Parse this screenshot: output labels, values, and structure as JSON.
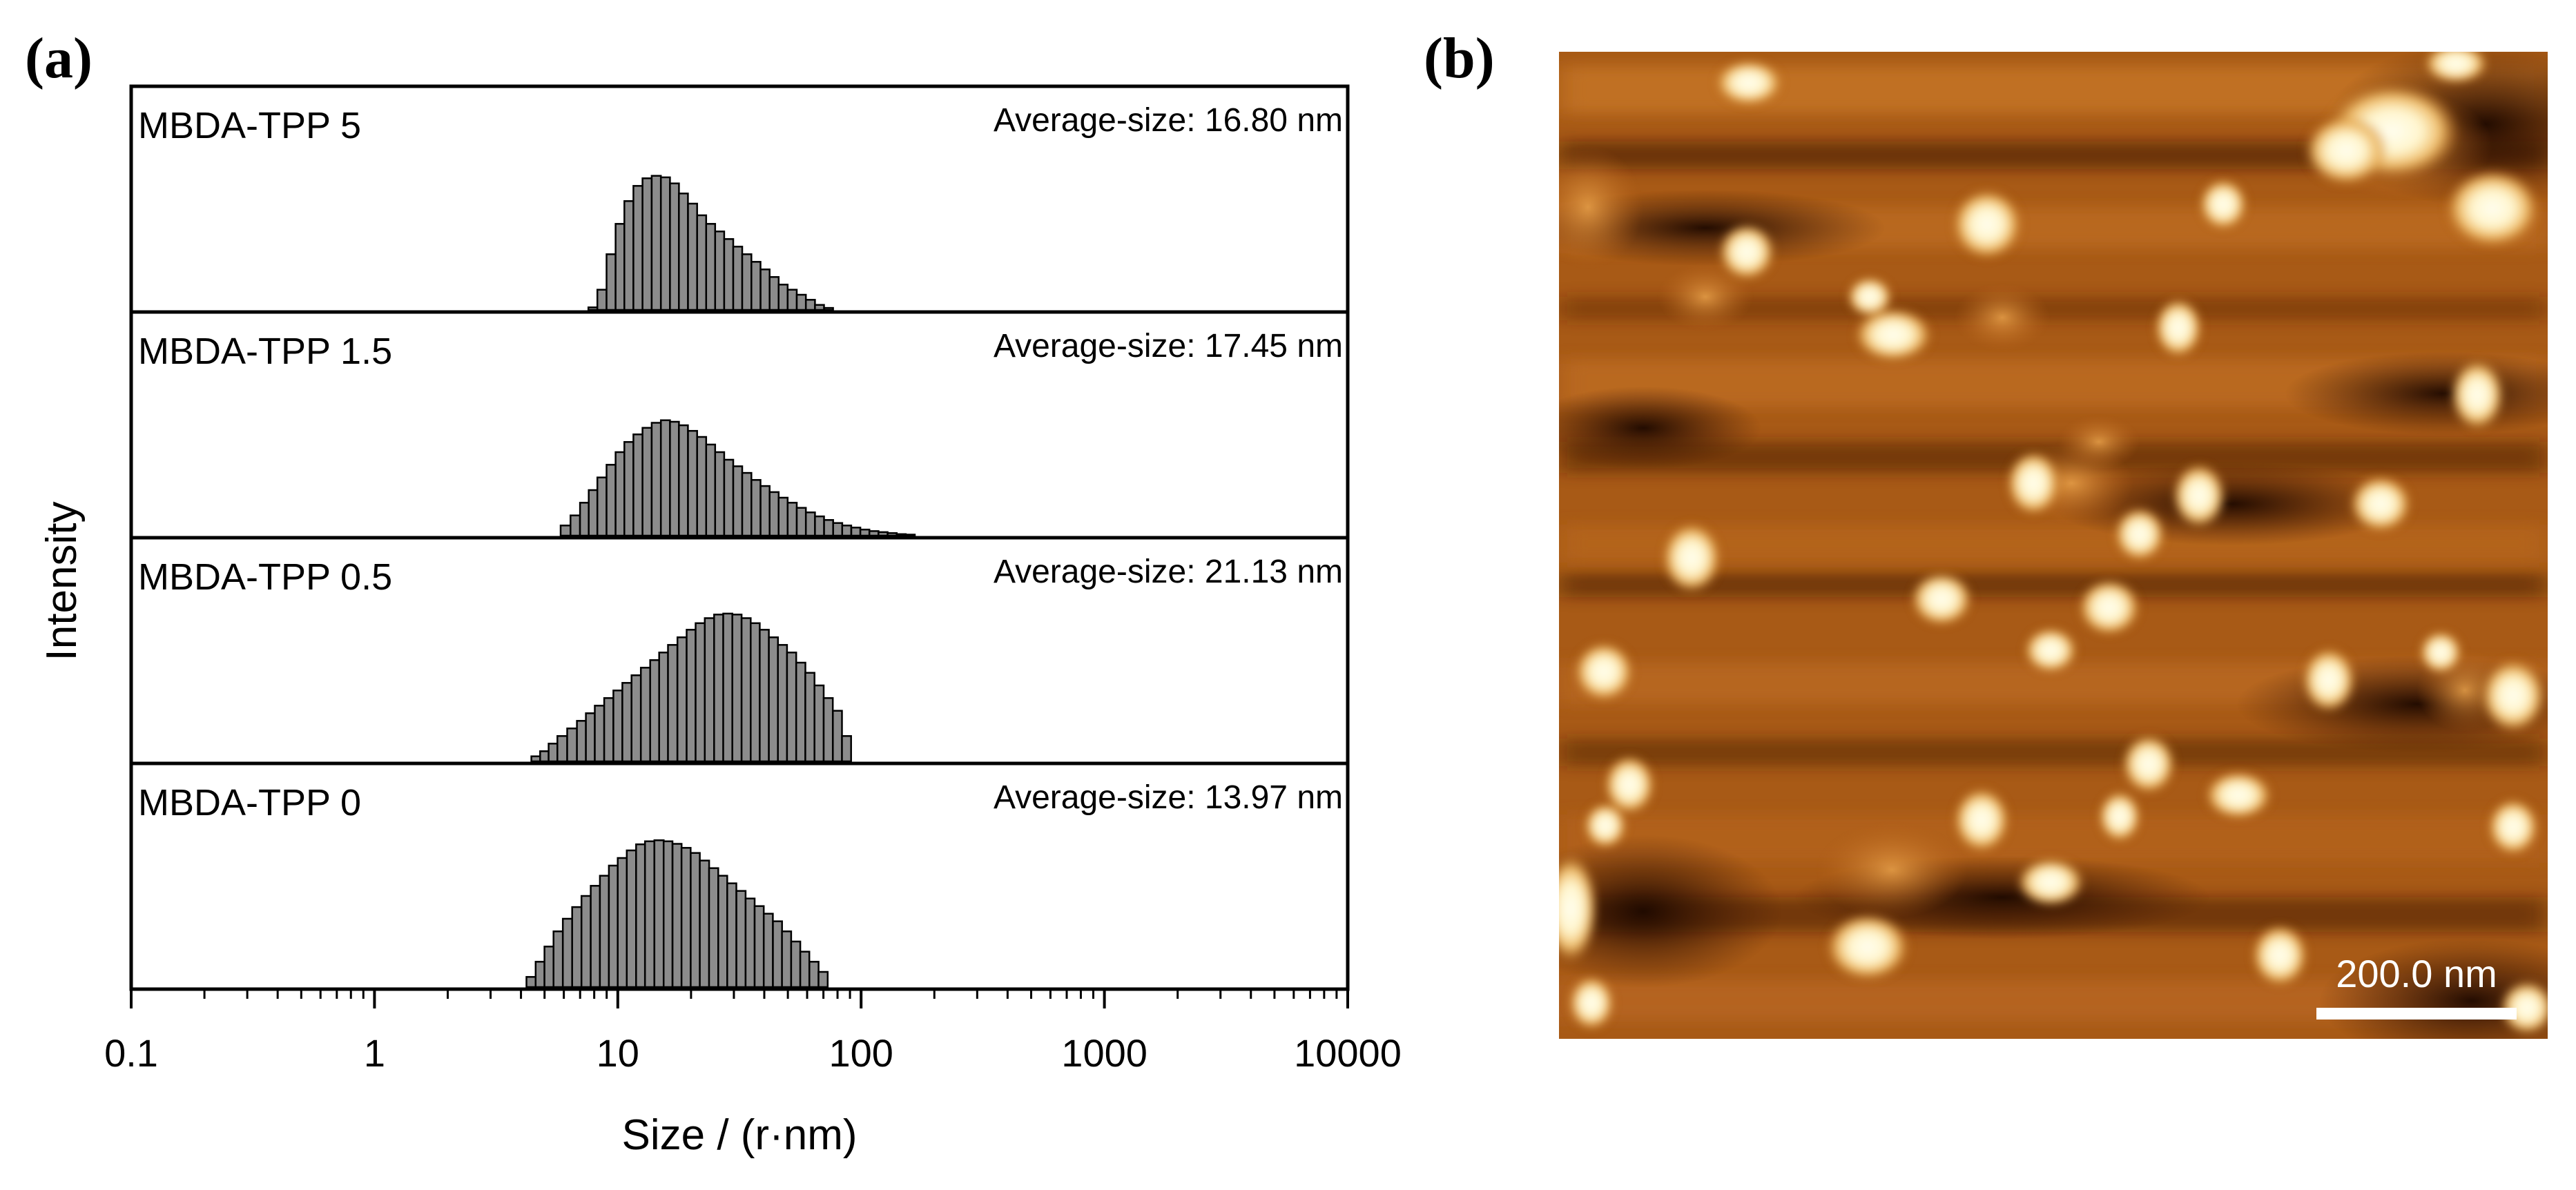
{
  "panel_a": {
    "letter": "(a)"
  },
  "panel_b": {
    "letter": "(b)",
    "scale_bar_label": "200.0 nm"
  },
  "chart_data": {
    "type": "bar",
    "title": "",
    "xlabel": "Size / (r·nm)",
    "ylabel": "Intensity",
    "xscale": "log",
    "xlim": [
      0.1,
      10000
    ],
    "x_ticks": [
      0.1,
      1,
      10,
      100,
      1000,
      10000
    ],
    "x_tick_labels": [
      "0.1",
      "1",
      "10",
      "100",
      "1000",
      "10000"
    ],
    "series": [
      {
        "name": "MBDA-TPP 5",
        "average_label": "Average-size: 16.80 nm",
        "x": [
          7.9,
          8.6,
          9.4,
          10.2,
          11.1,
          12.1,
          13.2,
          14.4,
          15.7,
          17.1,
          18.6,
          20.3,
          22.1,
          24.1,
          26.2,
          28.6,
          31.1,
          33.9,
          37.0,
          40.3,
          43.9,
          47.8,
          52.1,
          56.8,
          61.9,
          67.5,
          73.5
        ],
        "values": [
          0.5,
          4,
          11,
          17,
          21.5,
          24.5,
          26,
          26.5,
          26.2,
          25,
          23,
          21,
          18.7,
          17,
          15.5,
          14,
          12.5,
          11,
          9.5,
          8,
          6.5,
          5,
          4,
          3,
          2,
          1,
          0.4
        ]
      },
      {
        "name": "MBDA-TPP 1.5",
        "average_label": "Average-size: 17.45 nm",
        "x": [
          6.1,
          6.7,
          7.3,
          7.9,
          8.6,
          9.4,
          10.2,
          11.1,
          12.1,
          13.2,
          14.4,
          15.7,
          17.1,
          18.6,
          20.3,
          22.1,
          24.1,
          26.2,
          28.6,
          31.1,
          33.9,
          37.0,
          40.3,
          43.9,
          47.8,
          52.1,
          56.8,
          61.9,
          67.5,
          73.5,
          80.1,
          87.3,
          95.1,
          103.6,
          112.9,
          123.1,
          134.1,
          146.2,
          159.3
        ],
        "values": [
          2,
          4,
          6.5,
          9,
          11.5,
          14,
          16.5,
          18.5,
          20,
          21.3,
          22.3,
          22.8,
          22.5,
          21.8,
          20.7,
          19.5,
          18,
          16.5,
          15,
          13.7,
          12.4,
          11,
          9.8,
          8.6,
          7.5,
          6.5,
          5.5,
          4.6,
          3.8,
          3.1,
          2.5,
          2,
          1.6,
          1.2,
          0.9,
          0.7,
          0.5,
          0.3,
          0.2
        ]
      },
      {
        "name": "MBDA-TPP 0.5",
        "average_label": "Average-size: 21.13 nm",
        "x": [
          4.6,
          5.0,
          5.4,
          5.9,
          6.5,
          7.1,
          7.7,
          8.4,
          9.2,
          10.0,
          10.9,
          11.9,
          13.0,
          14.2,
          15.4,
          16.8,
          18.4,
          20.0,
          21.8,
          23.8,
          26.0,
          28.3,
          30.9,
          33.7,
          36.7,
          40.0,
          43.6,
          47.5,
          51.8,
          56.5,
          61.6,
          67.2,
          73.3,
          79.9,
          87.1
        ],
        "values": [
          1,
          2,
          3.5,
          5,
          6.5,
          8,
          9.5,
          11,
          12.5,
          14,
          15.5,
          17,
          18.5,
          20,
          21.5,
          23,
          24.5,
          26,
          27.3,
          28.3,
          29,
          29.2,
          29,
          28.3,
          27.3,
          26,
          24.5,
          23,
          21.5,
          19.5,
          17.5,
          15,
          12.5,
          10,
          5
        ]
      },
      {
        "name": "MBDA-TPP 0",
        "average_label": "Average-size: 13.97 nm",
        "x": [
          4.4,
          4.8,
          5.2,
          5.7,
          6.2,
          6.8,
          7.4,
          8.1,
          8.8,
          9.6,
          10.4,
          11.4,
          12.4,
          13.5,
          14.8,
          16.1,
          17.5,
          19.1,
          20.8,
          22.7,
          24.8,
          27.0,
          29.4,
          32.1,
          35.0,
          38.1,
          41.6,
          45.3,
          49.4,
          53.9,
          58.7,
          64.0,
          69.8
        ],
        "values": [
          2,
          5,
          8,
          11,
          13.5,
          15.8,
          18,
          20,
          22,
          24,
          25.5,
          27,
          28.2,
          28.8,
          29,
          28.8,
          28.3,
          27.5,
          26.5,
          25,
          23.5,
          22,
          20.5,
          19,
          17.5,
          16,
          14.5,
          13,
          11,
          9,
          7,
          5,
          3
        ]
      }
    ]
  }
}
